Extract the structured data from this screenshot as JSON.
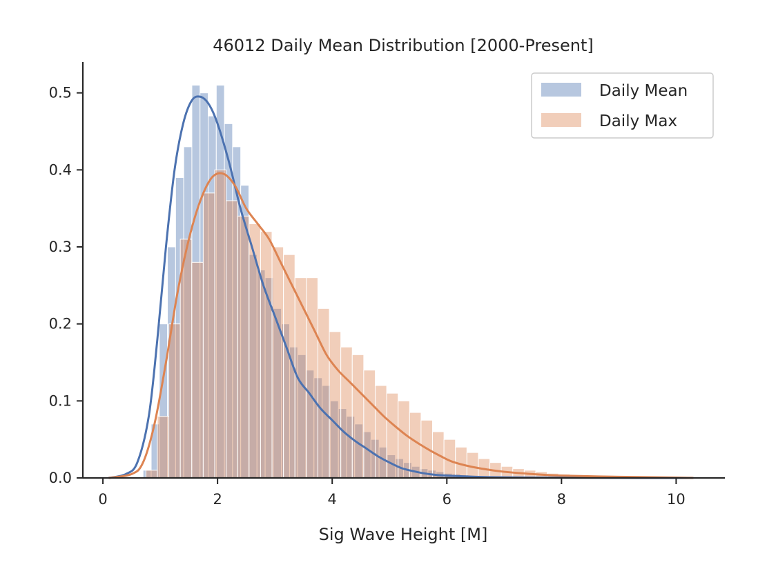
{
  "chart_data": {
    "type": "bar",
    "title": "46012 Daily Mean Distribution [2000-Present]",
    "xlabel": "Sig Wave Height [M]",
    "ylabel": "",
    "xlim": [
      -0.35,
      10.85
    ],
    "ylim": [
      0,
      0.54
    ],
    "xticks": [
      0,
      2,
      4,
      6,
      8,
      10
    ],
    "xtick_labels": [
      "0",
      "2",
      "4",
      "6",
      "8",
      "10"
    ],
    "yticks": [
      0.0,
      0.1,
      0.2,
      0.3,
      0.4,
      0.5
    ],
    "ytick_labels": [
      "0.0",
      "0.1",
      "0.2",
      "0.3",
      "0.4",
      "0.5"
    ],
    "grid": false,
    "legend_position": "top-right",
    "colors": {
      "daily_mean": "#4c72b0",
      "daily_max": "#dd8452"
    },
    "series": [
      {
        "name": "Daily Mean",
        "bin_start": 0.7,
        "bin_width": 0.142,
        "values": [
          0.01,
          0.07,
          0.2,
          0.3,
          0.39,
          0.43,
          0.51,
          0.5,
          0.47,
          0.51,
          0.46,
          0.43,
          0.38,
          0.29,
          0.27,
          0.26,
          0.22,
          0.2,
          0.17,
          0.16,
          0.14,
          0.13,
          0.12,
          0.1,
          0.09,
          0.08,
          0.07,
          0.06,
          0.05,
          0.04,
          0.03,
          0.025,
          0.02,
          0.015,
          0.012,
          0.01,
          0.008,
          0.006,
          0.005,
          0.004,
          0.003,
          0.002,
          0.0015,
          0.001,
          0.001,
          0.0008,
          0.0006,
          0.0005
        ],
        "kde_x": [
          0.1,
          0.4,
          0.6,
          0.8,
          0.95,
          1.1,
          1.25,
          1.4,
          1.55,
          1.7,
          1.85,
          2.0,
          2.2,
          2.4,
          2.6,
          2.8,
          3.0,
          3.2,
          3.4,
          3.6,
          3.8,
          4.0,
          4.2,
          4.4,
          4.6,
          4.8,
          5.0,
          5.2,
          5.4,
          5.6,
          5.8,
          6.0,
          6.5,
          7.0,
          8.0,
          9.0,
          10.0,
          10.3
        ],
        "kde_y": [
          0.0,
          0.005,
          0.02,
          0.08,
          0.18,
          0.3,
          0.4,
          0.46,
          0.49,
          0.495,
          0.485,
          0.46,
          0.41,
          0.35,
          0.3,
          0.25,
          0.21,
          0.17,
          0.13,
          0.11,
          0.09,
          0.075,
          0.06,
          0.048,
          0.038,
          0.028,
          0.02,
          0.013,
          0.009,
          0.006,
          0.004,
          0.003,
          0.0015,
          0.0008,
          0.0003,
          0.0001,
          0.0,
          0.0
        ]
      },
      {
        "name": "Daily Max",
        "bin_start": 0.75,
        "bin_width": 0.2,
        "values": [
          0.01,
          0.08,
          0.2,
          0.31,
          0.28,
          0.37,
          0.4,
          0.36,
          0.34,
          0.33,
          0.32,
          0.3,
          0.29,
          0.26,
          0.26,
          0.22,
          0.19,
          0.17,
          0.16,
          0.14,
          0.12,
          0.11,
          0.1,
          0.085,
          0.075,
          0.06,
          0.05,
          0.04,
          0.033,
          0.025,
          0.02,
          0.015,
          0.012,
          0.01,
          0.008,
          0.006,
          0.005,
          0.004,
          0.003,
          0.002,
          0.0015,
          0.001,
          0.001,
          0.0008,
          0.0006,
          0.0005,
          0.0004
        ],
        "kde_x": [
          0.1,
          0.5,
          0.7,
          0.9,
          1.1,
          1.3,
          1.5,
          1.7,
          1.9,
          2.1,
          2.3,
          2.5,
          2.7,
          2.9,
          3.1,
          3.3,
          3.5,
          3.7,
          3.9,
          4.1,
          4.3,
          4.5,
          4.7,
          4.9,
          5.1,
          5.3,
          5.5,
          5.7,
          5.9,
          6.1,
          6.4,
          6.7,
          7.0,
          7.5,
          8.0,
          9.0,
          10.0,
          10.3
        ],
        "kde_y": [
          0.0,
          0.005,
          0.02,
          0.07,
          0.15,
          0.24,
          0.31,
          0.36,
          0.39,
          0.395,
          0.38,
          0.35,
          0.33,
          0.31,
          0.28,
          0.25,
          0.22,
          0.19,
          0.16,
          0.14,
          0.125,
          0.11,
          0.095,
          0.08,
          0.067,
          0.055,
          0.045,
          0.036,
          0.028,
          0.021,
          0.015,
          0.011,
          0.008,
          0.005,
          0.003,
          0.0015,
          0.0005,
          0.0
        ]
      }
    ]
  }
}
